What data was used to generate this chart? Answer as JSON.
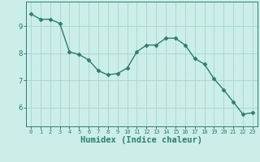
{
  "x": [
    0,
    1,
    2,
    3,
    4,
    5,
    6,
    7,
    8,
    9,
    10,
    11,
    12,
    13,
    14,
    15,
    16,
    17,
    18,
    19,
    20,
    21,
    22,
    23
  ],
  "y": [
    9.45,
    9.25,
    9.25,
    9.1,
    8.05,
    7.95,
    7.75,
    7.35,
    7.2,
    7.25,
    7.45,
    8.05,
    8.3,
    8.3,
    8.55,
    8.55,
    8.3,
    7.8,
    7.6,
    7.05,
    6.65,
    6.2,
    5.75,
    5.8
  ],
  "line_color": "#2e7d6e",
  "marker": "D",
  "markersize": 2.5,
  "linewidth": 1.0,
  "background_color": "#cceee8",
  "grid_color": "#aad8d0",
  "tick_color": "#2e7d6e",
  "label_color": "#2e7d6e",
  "xlabel": "Humidex (Indice chaleur)",
  "xlabel_fontsize": 7.5,
  "yticks": [
    6,
    7,
    8,
    9
  ],
  "xticks": [
    0,
    1,
    2,
    3,
    4,
    5,
    6,
    7,
    8,
    9,
    10,
    11,
    12,
    13,
    14,
    15,
    16,
    17,
    18,
    19,
    20,
    21,
    22,
    23
  ],
  "ylim": [
    5.3,
    9.9
  ],
  "xlim": [
    -0.5,
    23.5
  ]
}
